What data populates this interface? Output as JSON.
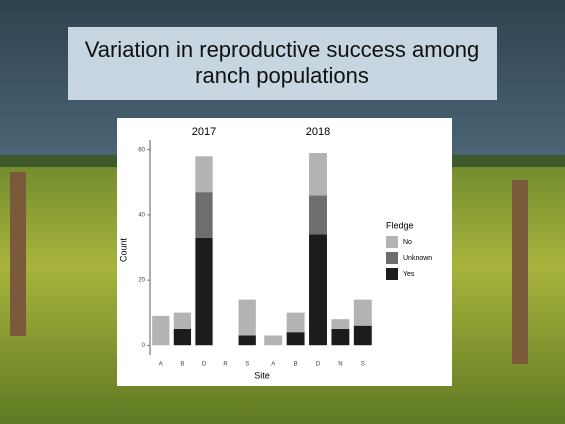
{
  "title": "Variation in reproductive success among ranch populations",
  "chart_data": [
    {
      "type": "bar",
      "stacked": true,
      "title": "2017",
      "ylabel": "Count",
      "xlabel": "Site",
      "legend_title": "Fledge",
      "categories": [
        "A",
        "B",
        "D",
        "R",
        "S"
      ],
      "series": [
        {
          "name": "No",
          "color": "#b3b3b3",
          "values": [
            9,
            5,
            11,
            0,
            11
          ]
        },
        {
          "name": "Unknown",
          "color": "#6e6e6e",
          "values": [
            0,
            0,
            14,
            0,
            0
          ]
        },
        {
          "name": "Yes",
          "color": "#1c1c1c",
          "values": [
            0,
            5,
            33,
            0,
            3
          ]
        }
      ],
      "ylim": [
        -3,
        63
      ],
      "yticks": [
        0,
        20,
        40,
        60
      ]
    },
    {
      "type": "bar",
      "stacked": true,
      "title": "2018",
      "categories": [
        "A",
        "B",
        "D",
        "N",
        "S"
      ],
      "series": [
        {
          "name": "No",
          "color": "#b3b3b3",
          "values": [
            3,
            6,
            13,
            3,
            8
          ]
        },
        {
          "name": "Unknown",
          "color": "#6e6e6e",
          "values": [
            0,
            0,
            12,
            0,
            0
          ]
        },
        {
          "name": "Yes",
          "color": "#1c1c1c",
          "values": [
            0,
            4,
            34,
            5,
            6
          ]
        }
      ],
      "ylim": [
        -3,
        63
      ]
    }
  ]
}
